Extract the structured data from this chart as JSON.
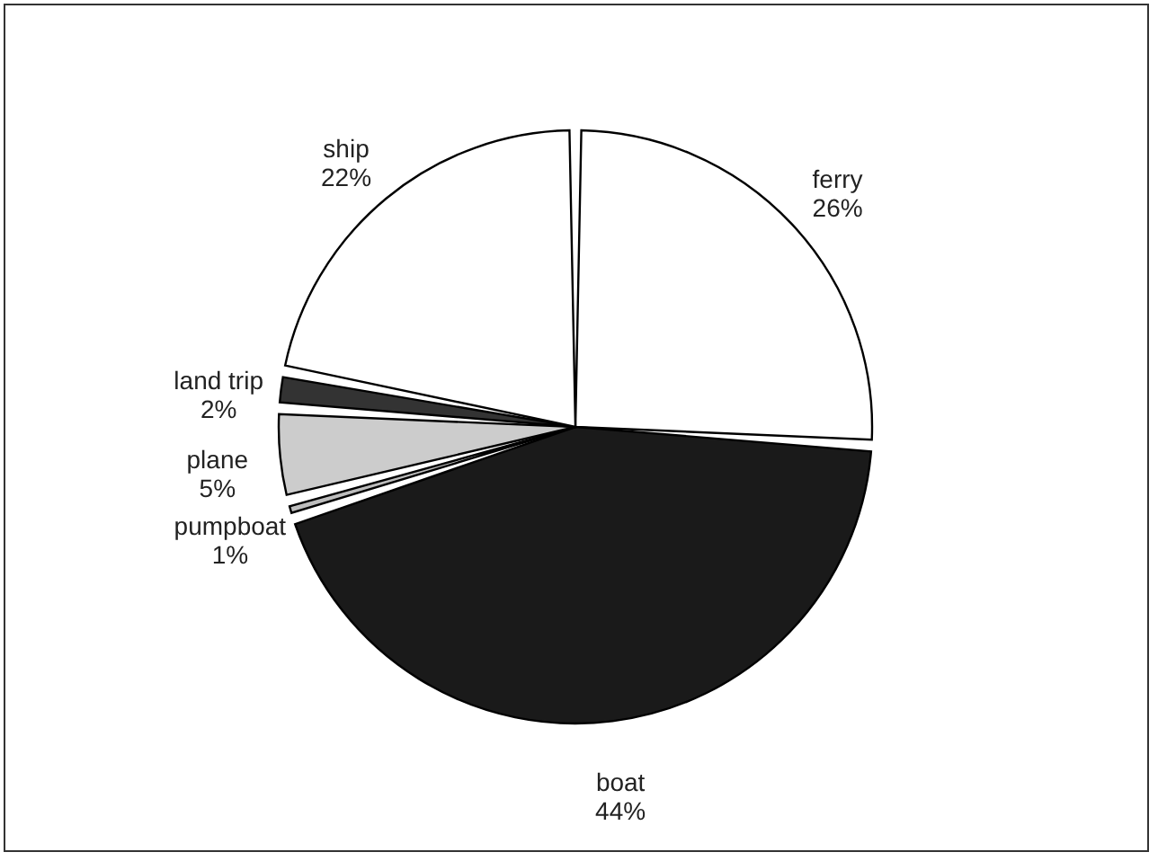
{
  "chart_data": {
    "type": "pie",
    "categories": [
      "ferry",
      "boat",
      "pumpboat",
      "plane",
      "land trip",
      "ship"
    ],
    "values": [
      26,
      44,
      1,
      5,
      2,
      22
    ],
    "value_labels": [
      "26%",
      "44%",
      "1%",
      "5%",
      "2%",
      "22%"
    ],
    "colors": [
      "#ffffff",
      "#1a1a1a",
      "#bdbdbd",
      "#cccccc",
      "#333333",
      "#ffffff"
    ],
    "legend": false
  }
}
